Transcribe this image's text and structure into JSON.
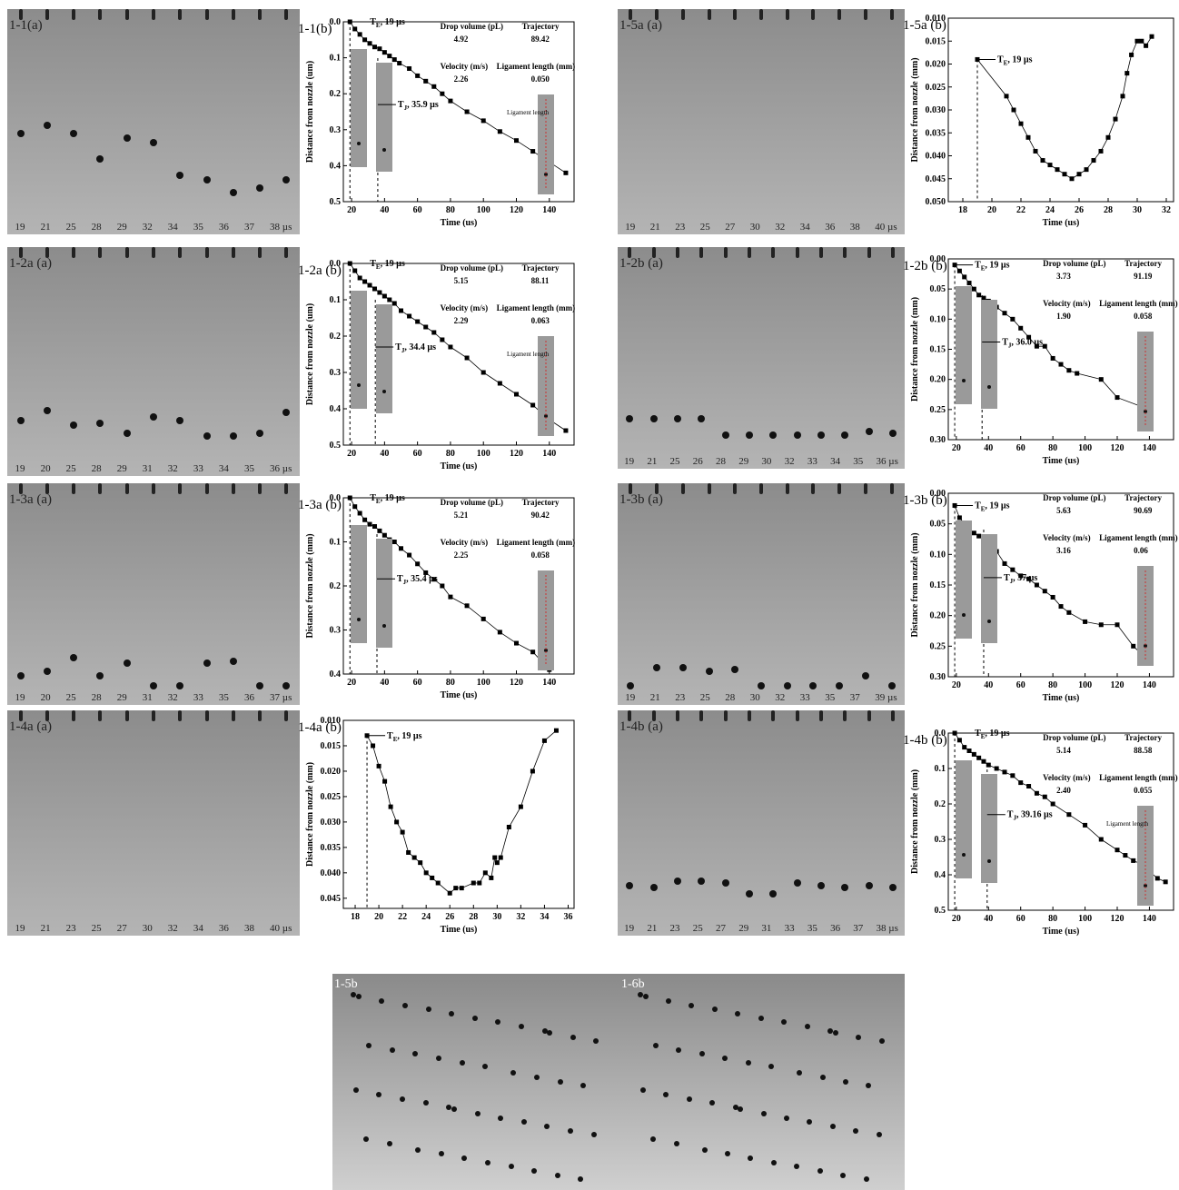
{
  "panels": [
    {
      "id": "p11",
      "strip_label": "1-1(a)",
      "chart_label": "1-1(b)",
      "times": [
        "19",
        "21",
        "25",
        "28",
        "29",
        "32",
        "34",
        "35",
        "36",
        "37",
        "38 µs"
      ],
      "drop_pos": [
        0.58,
        0.54,
        0.58,
        0.7,
        0.6,
        0.62,
        0.78,
        0.8,
        0.86,
        0.84,
        0.8
      ],
      "te": "T",
      "te_sub": "E",
      "te_val": ", 19 µs",
      "tj": "T",
      "tj_sub": "J",
      "tj_val": ", 35.9 µs",
      "info": {
        "h1": "Drop volume (pL)",
        "h2": "Trajectory",
        "v1": "4.92",
        "v2": "89.42",
        "h3": "Velocity (m/s)",
        "h4": "Ligament length (mm)",
        "v3": "2.26",
        "v4": "0.050"
      },
      "lig_label": "Ligament length"
    },
    {
      "id": "p15",
      "strip_label": "1-5a (a)",
      "chart_label": "1-5a (b)",
      "times": [
        "19",
        "21",
        "23",
        "25",
        "27",
        "30",
        "32",
        "34",
        "36",
        "38",
        "40 µs"
      ],
      "te": "T",
      "te_sub": "E",
      "te_val": ", 19 µs"
    },
    {
      "id": "p12a",
      "strip_label": "1-2a (a)",
      "chart_label": "1-2a (b)",
      "times": [
        "19",
        "20",
        "25",
        "28",
        "29",
        "31",
        "32",
        "33",
        "34",
        "35",
        "36 µs"
      ],
      "drop_pos": [
        0.8,
        0.75,
        0.82,
        0.81,
        0.86,
        0.78,
        0.8,
        0.87,
        0.87,
        0.86,
        0.76
      ],
      "te": "T",
      "te_sub": "E",
      "te_val": ", 19 µs",
      "tj": "T",
      "tj_sub": "J",
      "tj_val": ", 34.4 µs",
      "info": {
        "h1": "Drop volume (pL)",
        "h2": "Trajectory",
        "v1": "5.15",
        "v2": "88.11",
        "h3": "Velocity (m/s)",
        "h4": "Ligament length (mm)",
        "v3": "2.29",
        "v4": "0.063"
      },
      "lig_label": "Ligament length"
    },
    {
      "id": "p12b",
      "strip_label": "1-2b (a)",
      "chart_label": "1-2b (b)",
      "times": [
        "19",
        "21",
        "25",
        "26",
        "28",
        "29",
        "30",
        "32",
        "33",
        "34",
        "35",
        "36 µs"
      ],
      "drop_pos": [
        0.82,
        0.82,
        0.82,
        0.82,
        0.9,
        0.9,
        0.9,
        0.9,
        0.9,
        0.9,
        0.88,
        0.89
      ],
      "te": "T",
      "te_sub": "E",
      "te_val": ", 19 µs",
      "tj": "T",
      "tj_sub": "J",
      "tj_val": ", 36.0 µs",
      "info": {
        "h1": "Drop volume (pL)",
        "h2": "Trajectory",
        "v1": "3.73",
        "v2": "91.19",
        "h3": "Velocity (m/s)",
        "h4": "Ligament length (mm)",
        "v3": "1.90",
        "v4": "0.058"
      }
    },
    {
      "id": "p13a",
      "strip_label": "1-3a (a)",
      "chart_label": "1-3a (b)",
      "times": [
        "19",
        "20",
        "25",
        "28",
        "29",
        "31",
        "32",
        "33",
        "35",
        "36",
        "37 µs"
      ],
      "drop_pos": [
        0.92,
        0.9,
        0.83,
        0.92,
        0.86,
        0.97,
        0.97,
        0.86,
        0.85,
        0.97,
        0.97
      ],
      "te": "T",
      "te_sub": "E",
      "te_val": ", 19 µs",
      "tj": "T",
      "tj_sub": "J",
      "tj_val": ", 35.4 µs",
      "info": {
        "h1": "Drop volume (pL)",
        "h2": "Trajectory",
        "v1": "5.21",
        "v2": "90.42",
        "h3": "Velocity (m/s)",
        "h4": "Ligament length (mm)",
        "v3": "2.25",
        "v4": "0.058"
      }
    },
    {
      "id": "p13b",
      "strip_label": "1-3b (a)",
      "chart_label": "1-3b (b)",
      "times": [
        "19",
        "21",
        "23",
        "25",
        "28",
        "30",
        "32",
        "33",
        "35",
        "37",
        "39 µs"
      ],
      "drop_pos": [
        0.97,
        0.88,
        0.88,
        0.9,
        0.89,
        0.97,
        0.97,
        0.97,
        0.97,
        0.92,
        0.97
      ],
      "te": "T",
      "te_sub": "E",
      "te_val": ", 19 µs",
      "tj": "T",
      "tj_sub": "J",
      "tj_val": ", 37 µs",
      "info": {
        "h1": "Drop volume (pL)",
        "h2": "Trajectory",
        "v1": "5.63",
        "v2": "90.69",
        "h3": "Velocity (m/s)",
        "h4": "Ligament length (mm)",
        "v3": "3.16",
        "v4": "0.06"
      }
    },
    {
      "id": "p14a",
      "strip_label": "1-4a (a)",
      "chart_label": "1-4a (b)",
      "times": [
        "19",
        "21",
        "23",
        "25",
        "27",
        "30",
        "32",
        "34",
        "36",
        "38",
        "40 µs"
      ],
      "te": "T",
      "te_sub": "E",
      "te_val": ", 19 µs"
    },
    {
      "id": "p14b",
      "strip_label": "1-4b (a)",
      "chart_label": "1-4b (b)",
      "times": [
        "19",
        "21",
        "23",
        "25",
        "27",
        "29",
        "31",
        "33",
        "35",
        "36",
        "37",
        "38 µs"
      ],
      "drop_pos": [
        0.82,
        0.83,
        0.8,
        0.8,
        0.81,
        0.86,
        0.86,
        0.81,
        0.82,
        0.83,
        0.82,
        0.83
      ],
      "te": "T",
      "te_sub": "E",
      "te_val": ", 19 µs",
      "tj": "T",
      "tj_sub": "J",
      "tj_val": ", 39.16 µs",
      "info": {
        "h1": "Drop volume (pL)",
        "h2": "Trajectory",
        "v1": "5.14",
        "v2": "88.58",
        "h3": "Velocity (m/s)",
        "h4": "Ligament length (mm)",
        "v3": "2.40",
        "v4": "0.055"
      },
      "lig_label": "Ligament length"
    }
  ],
  "bottom": {
    "left": "1-5b",
    "right": "1-6b"
  },
  "chart_data": [
    {
      "type": "scatter",
      "panel": "1-1(b)",
      "xlabel": "Time (us)",
      "ylabel": "Distance from nozzle (um)",
      "xlim": [
        15,
        155
      ],
      "ylim": [
        0,
        0.5
      ],
      "ydir": "down",
      "xticks": [
        20,
        40,
        60,
        80,
        100,
        120,
        140
      ],
      "yticks": [
        0.0,
        0.1,
        0.2,
        0.3,
        0.4,
        0.5
      ],
      "ytick_fmt": 1,
      "x": [
        19,
        22,
        25,
        28,
        31,
        34,
        37,
        40,
        43,
        46,
        49,
        55,
        60,
        65,
        70,
        75,
        80,
        90,
        100,
        110,
        120,
        130,
        140,
        150
      ],
      "y": [
        0,
        0.02,
        0.035,
        0.05,
        0.06,
        0.07,
        0.075,
        0.085,
        0.095,
        0.105,
        0.115,
        0.13,
        0.15,
        0.165,
        0.18,
        0.2,
        0.22,
        0.25,
        0.275,
        0.305,
        0.33,
        0.36,
        0.39,
        0.42
      ],
      "te_x": 19,
      "tj_x": 35.9
    },
    {
      "type": "scatter",
      "panel": "1-5a (b)",
      "xlabel": "Time (us)",
      "ylabel": "Distance from nozzle (mm)",
      "xlim": [
        17,
        32.5
      ],
      "ylim": [
        0.01,
        0.05
      ],
      "ydir": "down",
      "xticks": [
        18,
        20,
        22,
        24,
        26,
        28,
        30,
        32
      ],
      "yticks": [
        0.01,
        0.015,
        0.02,
        0.025,
        0.03,
        0.035,
        0.04,
        0.045,
        0.05
      ],
      "ytick_fmt": 3,
      "x": [
        19,
        21,
        21.5,
        22,
        22.5,
        23,
        23.5,
        24,
        24.5,
        25,
        25.5,
        26,
        26.5,
        27,
        27.5,
        28,
        28.5,
        29,
        29.3,
        29.6,
        30,
        30.3,
        30.6,
        31
      ],
      "y": [
        0.019,
        0.027,
        0.03,
        0.033,
        0.036,
        0.039,
        0.041,
        0.042,
        0.043,
        0.044,
        0.045,
        0.044,
        0.043,
        0.041,
        0.039,
        0.036,
        0.032,
        0.027,
        0.022,
        0.018,
        0.015,
        0.015,
        0.016,
        0.014
      ],
      "te_x": 19
    },
    {
      "type": "scatter",
      "panel": "1-2a (b)",
      "xlabel": "Time (us)",
      "ylabel": "Distance from nozzle (um)",
      "xlim": [
        15,
        155
      ],
      "ylim": [
        0,
        0.5
      ],
      "ydir": "down",
      "xticks": [
        20,
        40,
        60,
        80,
        100,
        120,
        140
      ],
      "yticks": [
        0.0,
        0.1,
        0.2,
        0.3,
        0.4,
        0.5
      ],
      "ytick_fmt": 1,
      "x": [
        19,
        22,
        25,
        28,
        31,
        34,
        37,
        40,
        43,
        46,
        50,
        55,
        60,
        65,
        70,
        75,
        80,
        90,
        100,
        110,
        120,
        130,
        140,
        150
      ],
      "y": [
        0,
        0.02,
        0.04,
        0.05,
        0.06,
        0.07,
        0.08,
        0.09,
        0.1,
        0.11,
        0.13,
        0.145,
        0.16,
        0.175,
        0.19,
        0.21,
        0.23,
        0.26,
        0.3,
        0.33,
        0.36,
        0.39,
        0.43,
        0.46
      ],
      "te_x": 19,
      "tj_x": 34.4
    },
    {
      "type": "scatter",
      "panel": "1-2b (b)",
      "xlabel": "Time (us)",
      "ylabel": "Distance from nozzle (mm)",
      "xlim": [
        15,
        155
      ],
      "ylim": [
        0,
        0.3
      ],
      "ydir": "down",
      "xticks": [
        20,
        40,
        60,
        80,
        100,
        120,
        140
      ],
      "yticks": [
        0.0,
        0.05,
        0.1,
        0.15,
        0.2,
        0.25,
        0.3
      ],
      "ytick_fmt": 2,
      "x": [
        19,
        22,
        25,
        28,
        31,
        34,
        37,
        40,
        45,
        50,
        55,
        60,
        65,
        70,
        75,
        80,
        85,
        90,
        95,
        110,
        120,
        140
      ],
      "y": [
        0.01,
        0.02,
        0.03,
        0.04,
        0.05,
        0.06,
        0.065,
        0.07,
        0.08,
        0.09,
        0.1,
        0.115,
        0.13,
        0.145,
        0.145,
        0.165,
        0.175,
        0.185,
        0.19,
        0.2,
        0.23,
        0.25
      ],
      "te_x": 19,
      "tj_x": 36.0
    },
    {
      "type": "scatter",
      "panel": "1-3a (b)",
      "xlabel": "Time (us)",
      "ylabel": "Distance from nozzle (mm)",
      "xlim": [
        15,
        155
      ],
      "ylim": [
        0,
        0.4
      ],
      "ydir": "down",
      "xticks": [
        20,
        40,
        60,
        80,
        100,
        120,
        140
      ],
      "yticks": [
        0.0,
        0.1,
        0.2,
        0.3,
        0.4
      ],
      "ytick_fmt": 1,
      "x": [
        19,
        22,
        25,
        28,
        31,
        34,
        37,
        40,
        43,
        46,
        50,
        55,
        60,
        65,
        70,
        75,
        80,
        90,
        100,
        110,
        120,
        130,
        140
      ],
      "y": [
        0,
        0.02,
        0.035,
        0.05,
        0.06,
        0.065,
        0.075,
        0.085,
        0.095,
        0.1,
        0.115,
        0.13,
        0.15,
        0.17,
        0.185,
        0.2,
        0.225,
        0.245,
        0.275,
        0.305,
        0.33,
        0.35,
        0.39
      ],
      "te_x": 19,
      "tj_x": 35.4
    },
    {
      "type": "scatter",
      "panel": "1-3b (b)",
      "xlabel": "Time (us)",
      "ylabel": "Distance from nozzle (mm)",
      "xlim": [
        15,
        155
      ],
      "ylim": [
        0,
        0.3
      ],
      "ydir": "down",
      "xticks": [
        20,
        40,
        60,
        80,
        100,
        120,
        140
      ],
      "yticks": [
        0.0,
        0.05,
        0.1,
        0.15,
        0.2,
        0.25,
        0.3
      ],
      "ytick_fmt": 2,
      "x": [
        19,
        22,
        25,
        28,
        31,
        34,
        37,
        45,
        50,
        55,
        60,
        65,
        70,
        75,
        80,
        85,
        90,
        100,
        110,
        120,
        130,
        140
      ],
      "y": [
        0.02,
        0.04,
        0.05,
        0.06,
        0.065,
        0.07,
        0.075,
        0.095,
        0.115,
        0.125,
        0.135,
        0.14,
        0.15,
        0.16,
        0.17,
        0.185,
        0.195,
        0.21,
        0.215,
        0.215,
        0.25,
        0.275
      ],
      "te_x": 19,
      "tj_x": 37
    },
    {
      "type": "scatter",
      "panel": "1-4a (b)",
      "xlabel": "Time (us)",
      "ylabel": "Distance from nozzle (mm)",
      "xlim": [
        17,
        36.5
      ],
      "ylim": [
        0.01,
        0.047
      ],
      "ydir": "down",
      "xticks": [
        18,
        20,
        22,
        24,
        26,
        28,
        30,
        32,
        34,
        36
      ],
      "yticks": [
        0.01,
        0.015,
        0.02,
        0.025,
        0.03,
        0.035,
        0.04,
        0.045
      ],
      "ytick_fmt": 3,
      "x": [
        19,
        19.5,
        20,
        20.5,
        21,
        21.5,
        22,
        22.5,
        23,
        23.5,
        24,
        24.5,
        25,
        26,
        26.5,
        27,
        28,
        28.5,
        29,
        29.5,
        29.8,
        30,
        30.3,
        31,
        32,
        33,
        34,
        35
      ],
      "y": [
        0.013,
        0.015,
        0.019,
        0.022,
        0.027,
        0.03,
        0.032,
        0.036,
        0.037,
        0.038,
        0.04,
        0.041,
        0.042,
        0.044,
        0.043,
        0.043,
        0.042,
        0.042,
        0.04,
        0.041,
        0.037,
        0.038,
        0.037,
        0.031,
        0.027,
        0.02,
        0.014,
        0.012
      ],
      "te_x": 19
    },
    {
      "type": "scatter",
      "panel": "1-4b (b)",
      "xlabel": "Time (us)",
      "ylabel": "Distance from nozzle (mm)",
      "xlim": [
        15,
        155
      ],
      "ylim": [
        0,
        0.5
      ],
      "ydir": "down",
      "xticks": [
        20,
        40,
        60,
        80,
        100,
        120,
        140
      ],
      "yticks": [
        0.0,
        0.1,
        0.2,
        0.3,
        0.4,
        0.5
      ],
      "ytick_fmt": 1,
      "x": [
        19,
        22,
        25,
        28,
        31,
        34,
        37,
        40,
        45,
        50,
        55,
        60,
        65,
        70,
        75,
        80,
        90,
        100,
        110,
        120,
        125,
        130,
        135,
        140,
        145,
        150
      ],
      "y": [
        0,
        0.02,
        0.04,
        0.05,
        0.06,
        0.07,
        0.08,
        0.09,
        0.1,
        0.11,
        0.12,
        0.14,
        0.15,
        0.17,
        0.18,
        0.2,
        0.23,
        0.26,
        0.3,
        0.33,
        0.345,
        0.36,
        0.37,
        0.39,
        0.41,
        0.42
      ],
      "te_x": 19,
      "tj_x": 39.16
    }
  ]
}
